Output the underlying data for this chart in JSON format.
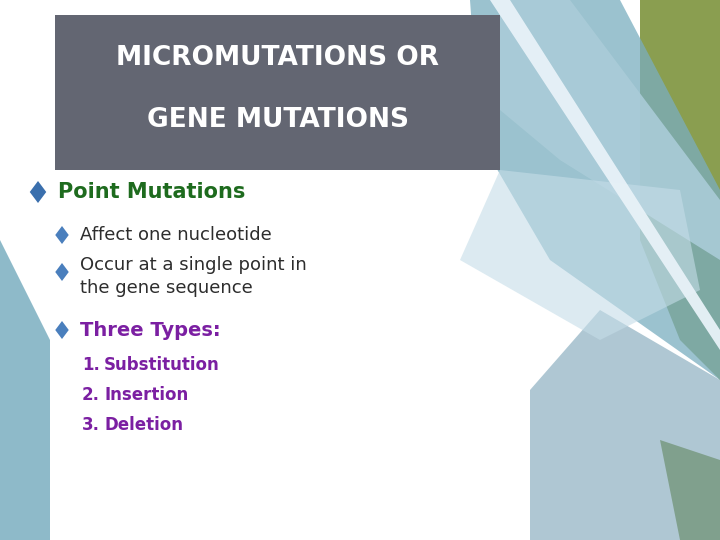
{
  "title_line1": "MICROMUTATIONS OR",
  "title_line2": "GENE MUTATIONS",
  "title_bg_color": "#636672",
  "title_text_color": "#ffffff",
  "bg_color": "#ffffff",
  "bullet1_text": "Point Mutations",
  "bullet1_color": "#1e6b1e",
  "bullet2a_text": "Affect one nucleotide",
  "bullet2b_line1": "Occur at a single point in",
  "bullet2b_line2": "the gene sequence",
  "bullet2_color": "#2d2d2d",
  "bullet3_text": "Three Types:",
  "bullet3_color": "#7b1fa2",
  "numbered1": "Substitution",
  "numbered2": "Insertion",
  "numbered3": "Deletion",
  "numbered_color": "#7b1fa2",
  "diamond_color_large": "#3a6fad",
  "diamond_color_small": "#4a7fbd",
  "decor_green": "#8a9e50",
  "decor_blue_light": "#aaccd8",
  "decor_blue_mid": "#7aaec0",
  "decor_blue_dark": "#6090a8",
  "decor_white_strip": "#ddeef5"
}
